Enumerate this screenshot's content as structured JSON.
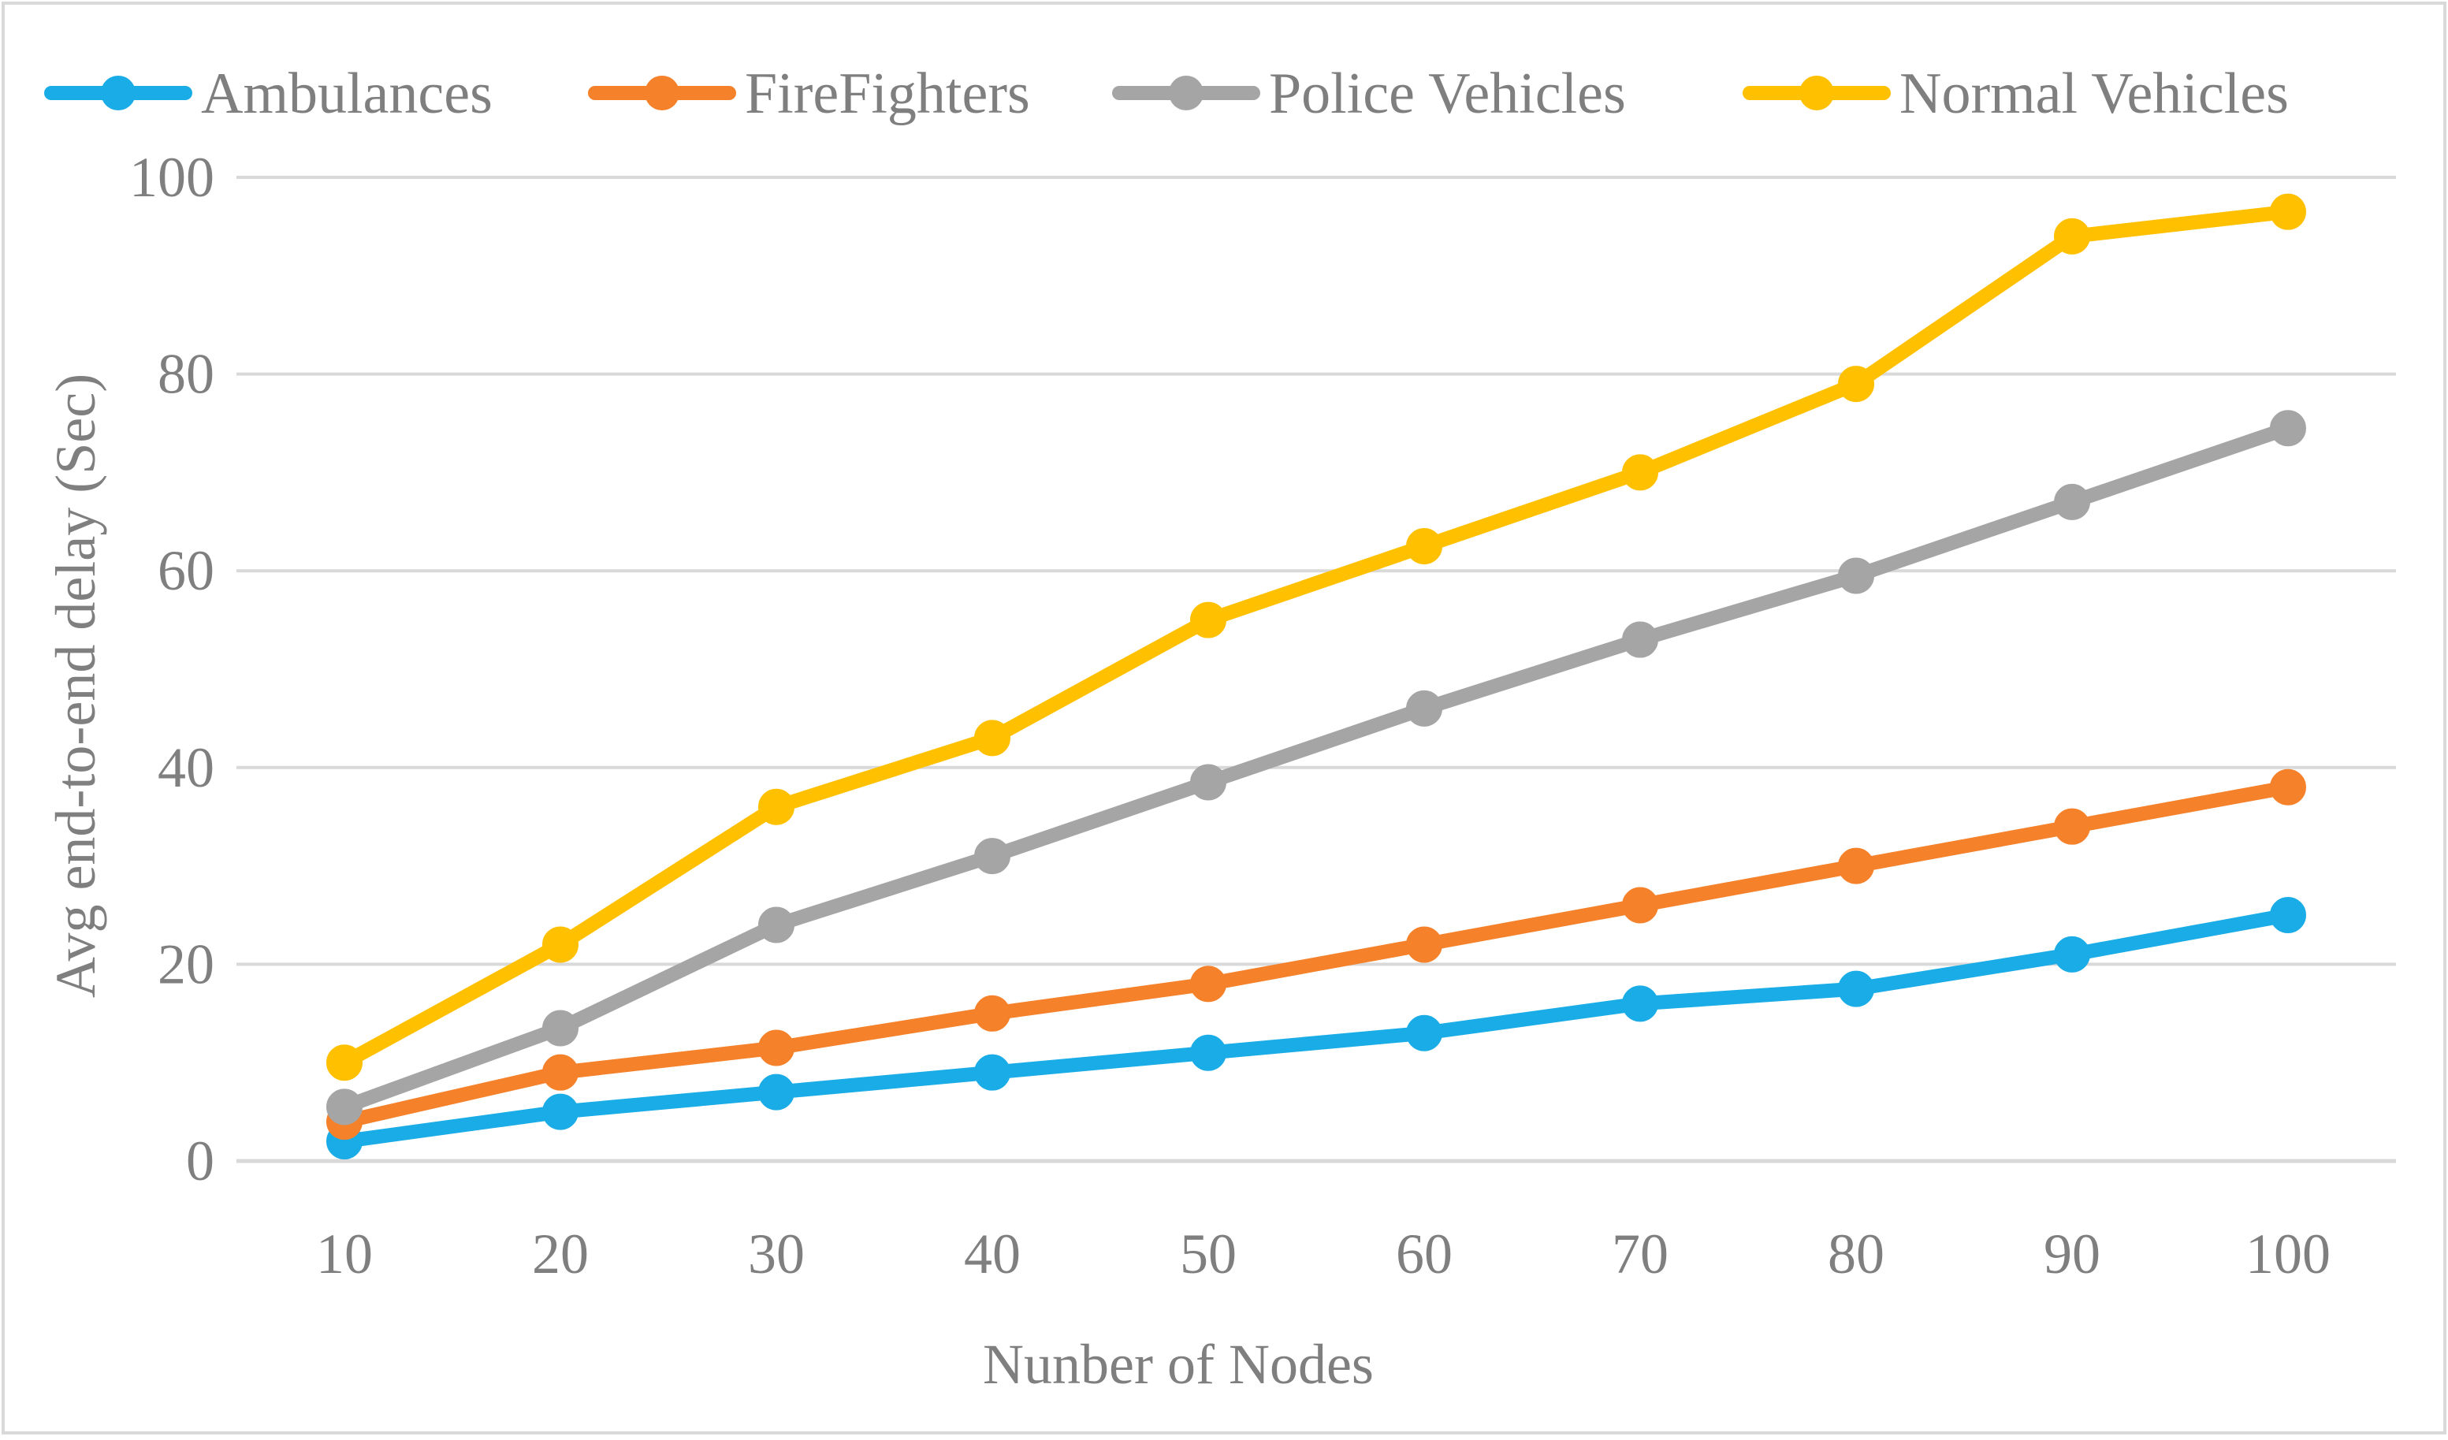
{
  "chart_data": {
    "type": "line",
    "title": "",
    "xlabel": "Nunber of Nodes",
    "ylabel": "Avg end-to-end delay (Sec)",
    "categories": [
      "10",
      "20",
      "30",
      "40",
      "50",
      "60",
      "70",
      "80",
      "90",
      "100"
    ],
    "y_ticks": [
      "0",
      "20",
      "40",
      "60",
      "80",
      "100"
    ],
    "ylim": [
      0,
      100
    ],
    "grid": true,
    "legend_position": "top",
    "series": [
      {
        "name": "Ambulances",
        "color": "#1AACE6",
        "values": [
          2,
          5,
          7,
          9,
          11,
          13,
          16,
          17.5,
          21,
          25
        ]
      },
      {
        "name": "FireFighters",
        "color": "#F5812A",
        "values": [
          4,
          9,
          11.5,
          15,
          18,
          22,
          26,
          30,
          34,
          38
        ]
      },
      {
        "name": "Police Vehicles",
        "color": "#A5A5A5",
        "values": [
          5.5,
          13.5,
          24,
          31,
          38.5,
          46,
          53,
          59.5,
          67,
          74.5
        ]
      },
      {
        "name": "Normal Vehicles",
        "color": "#FFC000",
        "values": [
          10,
          22,
          36,
          43,
          55,
          62.5,
          70,
          79,
          94,
          96.5
        ]
      }
    ]
  }
}
